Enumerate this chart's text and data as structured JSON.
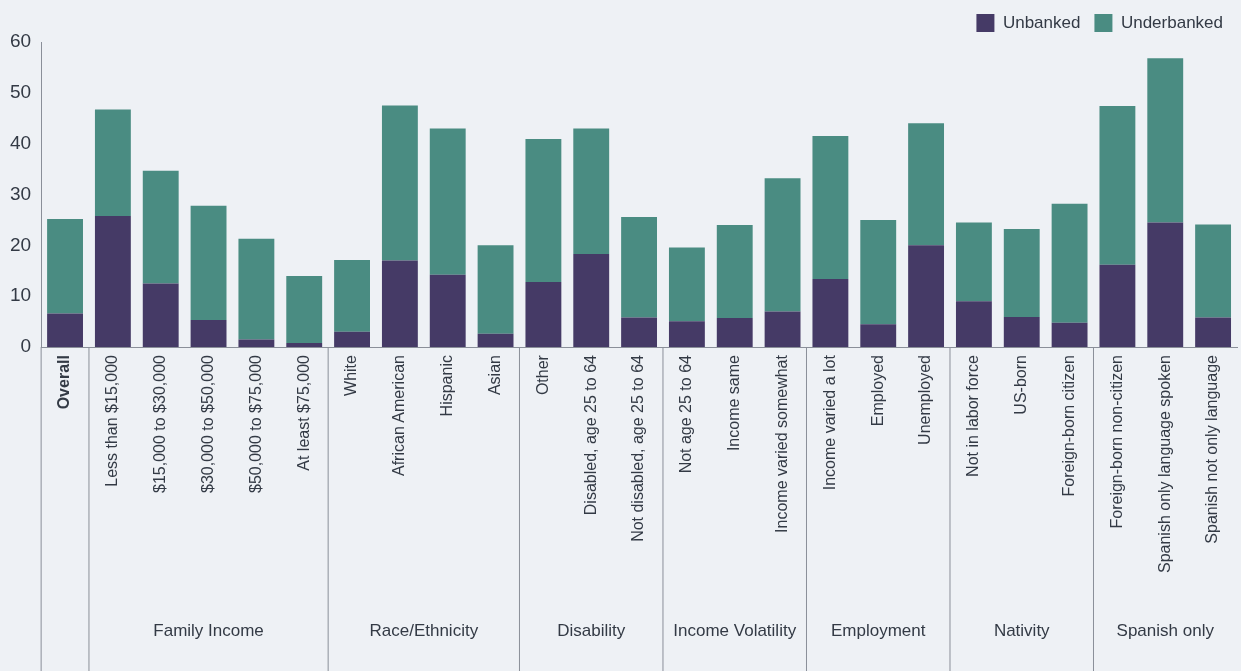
{
  "chart_data": {
    "type": "bar",
    "stacked": true,
    "legend": "top right",
    "grid": false,
    "categories": [
      "Overall",
      "Less than $15,000",
      "$15,000 to $30,000",
      "$30,000 to $50,000",
      "$50,000 to $75,000",
      "At least $75,000",
      "White",
      "African American",
      "Hispanic",
      "Asian",
      "Other",
      "Disabled, age 25 to 64",
      "Not disabled, age 25 to 64",
      "Not age 25 to 64",
      "Income same",
      "Income varied somewhat",
      "Income varied a lot",
      "Employed",
      "Unemployed",
      "Not in labor force",
      "US-born",
      "Foreign-born citizen",
      "Foreign-born non-citizen",
      "Spanish only language spoken",
      "Spanish not only language"
    ],
    "ylim": [
      0,
      60
    ],
    "yticks": [
      0,
      10,
      20,
      30,
      40,
      50,
      60
    ],
    "series": [
      {
        "name": "Unbanked",
        "color": "#453a66",
        "values": [
          6.6,
          25.8,
          12.5,
          5.3,
          1.5,
          0.8,
          3.0,
          17.0,
          14.2,
          2.6,
          12.8,
          18.3,
          5.8,
          5.1,
          5.7,
          7.0,
          13.4,
          4.5,
          20.0,
          9.0,
          5.9,
          4.8,
          16.2,
          24.5,
          5.8
        ]
      },
      {
        "name": "Underbanked",
        "color": "#4a8c82",
        "values": [
          18.6,
          20.9,
          22.2,
          22.5,
          19.8,
          13.2,
          14.1,
          30.5,
          28.8,
          17.4,
          28.1,
          24.7,
          19.8,
          14.5,
          18.3,
          26.2,
          28.1,
          20.5,
          24.0,
          15.5,
          17.3,
          23.4,
          31.2,
          32.3,
          18.3
        ]
      }
    ],
    "annotations": [
      "Family Income",
      "Race/Ethnicity",
      "Disability",
      "Income Volatility",
      "Employment",
      "Nativity",
      "Spanish only"
    ]
  }
}
